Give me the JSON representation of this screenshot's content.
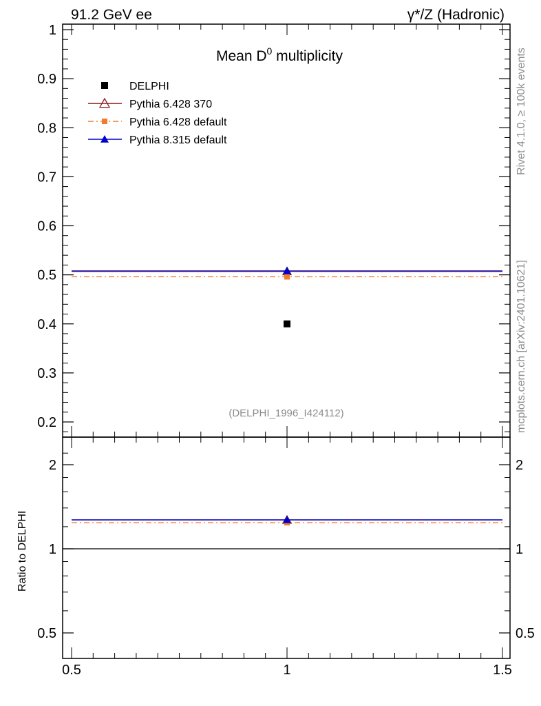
{
  "header": {
    "left": "91.2 GeV ee",
    "right": "γ*/Z (Hadronic)"
  },
  "side": {
    "rivet": "Rivet 4.1.0, ≥ 100k events",
    "mcplots": "mcplots.cern.ch [arXiv:2401.10621]"
  },
  "chart_data": {
    "type": "scatter",
    "title_main": "Mean D",
    "title_sup": "0",
    "title_rest": " multiplicity",
    "analysis_id": "(DELPHI_1996_I424112)",
    "x_range": [
      0.5,
      1.5
    ],
    "x_ticks": [
      "0.5",
      "1",
      "1.5"
    ],
    "main": {
      "ylim": [
        0.175,
        1.01
      ],
      "y_ticks": [
        "0.2",
        "0.3",
        "0.4",
        "0.5",
        "0.6",
        "0.7",
        "0.8",
        "0.9",
        "1"
      ]
    },
    "ratio": {
      "ylabel": "Ratio to DELPHI",
      "y_ticks": [
        "0.5",
        "1",
        "2"
      ],
      "ylim": [
        0.36,
        2.38
      ],
      "log": true
    },
    "series": [
      {
        "name": "DELPHI",
        "marker": "square",
        "color": "#000000",
        "x": 1.0,
        "y": 0.4,
        "ratio": 1.0,
        "line": "none"
      },
      {
        "name": "Pythia 6.428 370",
        "marker": "triangle-open",
        "color": "#8b1a1a",
        "x": 1.0,
        "y": 0.507,
        "ratio": 1.268,
        "line": "solid"
      },
      {
        "name": "Pythia 6.428 default",
        "marker": "square-small",
        "color": "#f07c2c",
        "x": 1.0,
        "y": 0.496,
        "ratio": 1.24,
        "line": "dashdot"
      },
      {
        "name": "Pythia 8.315 default",
        "marker": "triangle",
        "color": "#0000cc",
        "x": 1.0,
        "y": 0.508,
        "ratio": 1.27,
        "line": "solid"
      }
    ]
  }
}
